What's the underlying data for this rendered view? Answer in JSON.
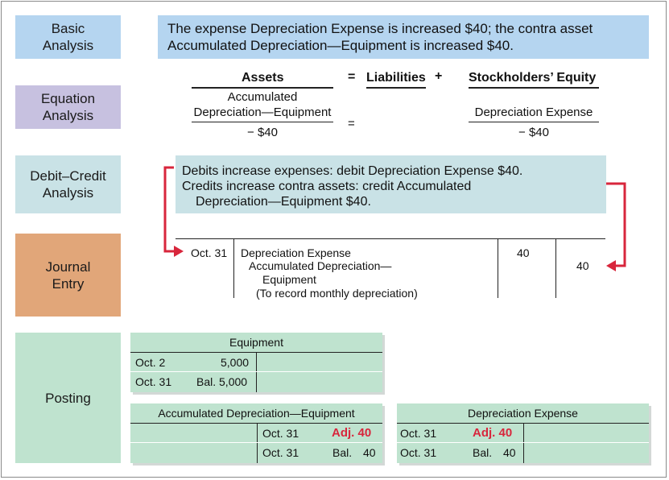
{
  "labels": {
    "basic": "Basic\nAnalysis",
    "equation": "Equation\nAnalysis",
    "debit_credit": "Debit–Credit\nAnalysis",
    "journal": "Journal\nEntry",
    "posting": "Posting"
  },
  "basic_analysis": {
    "line1": "The expense Depreciation Expense is increased $40; the contra asset",
    "line2": "Accumulated Depreciation—Equipment is increased $40."
  },
  "equation_analysis": {
    "assets_heading": "Assets",
    "equals_sign": "=",
    "liabilities_heading": "Liabilities",
    "plus_sign": "+",
    "equity_heading": "Stockholders’ Equity",
    "asset_account_line1": "Accumulated",
    "asset_account_line2": "Depreciation—Equipment",
    "asset_amount": "− $40",
    "middle_equals": "=",
    "equity_account": "Depreciation Expense",
    "equity_amount": "− $40"
  },
  "debit_credit_analysis": {
    "line1": "Debits increase expenses: debit Depreciation Expense $40.",
    "line2": "Credits increase contra assets: credit Accumulated",
    "line3": "Depreciation—Equipment $40."
  },
  "journal_entry": {
    "date": "Oct. 31",
    "debit_account": "Depreciation Expense",
    "credit_account_line1": "Accumulated Depreciation—",
    "credit_account_line2": "Equipment",
    "explanation": "(To record monthly depreciation)",
    "debit_amount": "40",
    "credit_amount": "40"
  },
  "posting": {
    "equipment": {
      "title": "Equipment",
      "row1_date": "Oct.  2",
      "row1_amount": "5,000",
      "row2_date": "Oct. 31",
      "row2_amount": "Bal. 5,000"
    },
    "accum_dep": {
      "title": "Accumulated Depreciation—Equipment",
      "row1_date": "Oct. 31",
      "row1_amount": "Adj. 40",
      "row2_date": "Oct. 31",
      "row2_bal": "Bal.",
      "row2_amount": "40"
    },
    "dep_expense": {
      "title": "Depreciation Expense",
      "row1_date": "Oct. 31",
      "row1_amount": "Adj. 40",
      "row2_date": "Oct. 31",
      "row2_bal": "Bal.",
      "row2_amount": "40"
    }
  },
  "colors": {
    "blue": "#b5d5f0",
    "purple": "#c7c1e0",
    "teal": "#c9e2e6",
    "orange": "#e1a679",
    "green": "#bfe3cf",
    "arrow_red": "#d8263c"
  }
}
